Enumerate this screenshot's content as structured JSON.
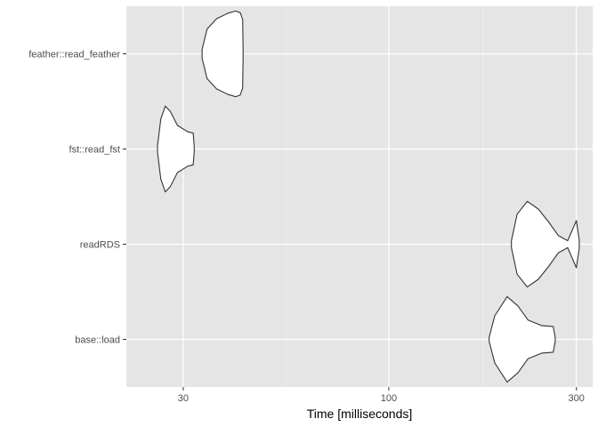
{
  "chart_data": {
    "type": "violin",
    "title": "",
    "xlabel": "Time [milliseconds]",
    "ylabel": "",
    "x_scale": "log10",
    "xlim": [
      21.5,
      330
    ],
    "x_ticks": [
      {
        "value": 30,
        "label": "30"
      },
      {
        "value": 100,
        "label": "100"
      },
      {
        "value": 300,
        "label": "300"
      }
    ],
    "x_minor_ticks": [
      54.77,
      173.2
    ],
    "grid": true,
    "legend": "none",
    "categories": [
      "feather::read_feather",
      "fst::read_fst",
      "readRDS",
      "base::load"
    ],
    "series": [
      {
        "category": "feather::read_feather",
        "profile": [
          [
            33.5,
            0.1
          ],
          [
            34.5,
            0.58
          ],
          [
            36.5,
            0.82
          ],
          [
            39.0,
            0.95
          ],
          [
            40.8,
            1.0
          ],
          [
            41.9,
            0.96
          ],
          [
            42.5,
            0.8
          ],
          [
            42.6,
            0.1
          ]
        ]
      },
      {
        "category": "fst::read_fst",
        "profile": [
          [
            25.8,
            0.07
          ],
          [
            26.3,
            0.7
          ],
          [
            27.0,
            1.0
          ],
          [
            27.8,
            0.88
          ],
          [
            29.0,
            0.55
          ],
          [
            30.8,
            0.4
          ],
          [
            31.8,
            0.37
          ],
          [
            32.0,
            0.05
          ]
        ]
      },
      {
        "category": "readRDS",
        "profile": [
          [
            205,
            0.08
          ],
          [
            212,
            0.7
          ],
          [
            225,
            1.0
          ],
          [
            240,
            0.82
          ],
          [
            255,
            0.52
          ],
          [
            270,
            0.2
          ],
          [
            285,
            0.08
          ],
          [
            300,
            0.55
          ],
          [
            305,
            0.1
          ]
        ]
      },
      {
        "category": "base::load",
        "profile": [
          [
            180,
            0.05
          ],
          [
            186,
            0.55
          ],
          [
            200,
            1.0
          ],
          [
            213,
            0.78
          ],
          [
            226,
            0.45
          ],
          [
            245,
            0.32
          ],
          [
            262,
            0.3
          ],
          [
            265,
            0.05
          ]
        ]
      }
    ]
  },
  "colors": {
    "panel_background": "#e5e5e5",
    "grid_major": "#ffffff",
    "grid_minor": "#f2f2f2",
    "violin_fill": "#ffffff",
    "violin_outline": "#333333",
    "tick_mark": "#333333"
  }
}
